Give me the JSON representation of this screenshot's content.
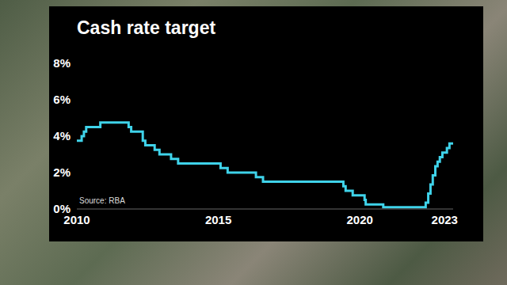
{
  "chart_data": {
    "type": "line",
    "title": "Cash rate target",
    "source": "Source: RBA",
    "x": [
      2010.0,
      2010.17,
      2010.25,
      2010.33,
      2010.83,
      2011.83,
      2011.92,
      2012.33,
      2012.42,
      2012.75,
      2012.92,
      2013.33,
      2013.58,
      2015.08,
      2015.33,
      2016.33,
      2016.58,
      2019.42,
      2019.5,
      2019.75,
      2020.17,
      2020.21,
      2020.83,
      2022.33,
      2022.42,
      2022.5,
      2022.58,
      2022.67,
      2022.75,
      2022.83,
      2022.92,
      2023.08,
      2023.17,
      2023.3
    ],
    "values": [
      3.75,
      4.0,
      4.25,
      4.5,
      4.75,
      4.5,
      4.25,
      3.75,
      3.5,
      3.25,
      3.0,
      2.75,
      2.5,
      2.25,
      2.0,
      1.75,
      1.5,
      1.25,
      1.0,
      0.75,
      0.5,
      0.25,
      0.1,
      0.35,
      0.85,
      1.35,
      1.85,
      2.35,
      2.6,
      2.85,
      3.1,
      3.35,
      3.6,
      3.6
    ],
    "color": "#3fd3ea",
    "line_style": "step",
    "xlim": [
      2010,
      2023.3
    ],
    "xticks": [
      2010,
      2015,
      2020,
      2023
    ],
    "ylim": [
      0,
      8
    ],
    "yticks": [
      {
        "value": 0,
        "label": "0%"
      },
      {
        "value": 2,
        "label": "2%"
      },
      {
        "value": 4,
        "label": "4%"
      },
      {
        "value": 6,
        "label": "6%"
      },
      {
        "value": 8,
        "label": "8%"
      }
    ],
    "grid": false
  }
}
